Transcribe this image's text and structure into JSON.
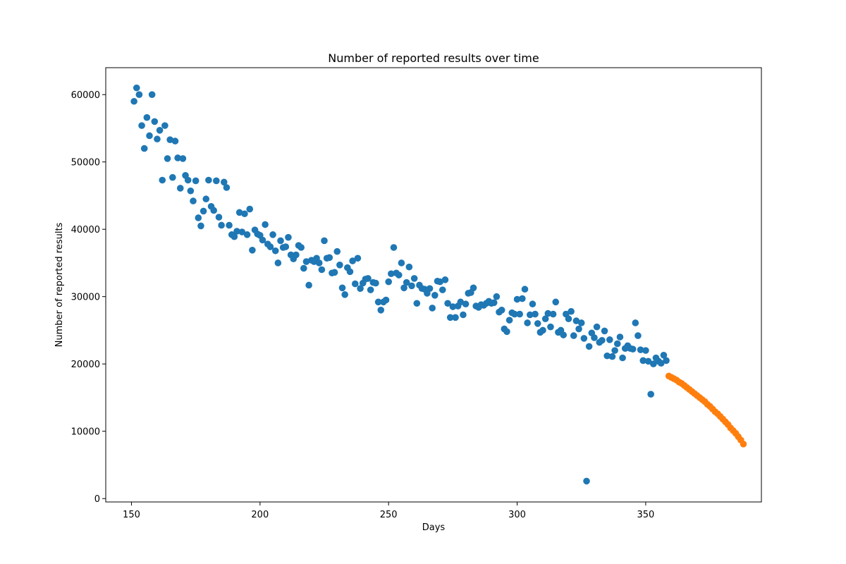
{
  "chart_data": {
    "type": "scatter",
    "title": "Number of reported results over time",
    "xlabel": "Days",
    "ylabel": "Number of reported results",
    "xlim": [
      140,
      395
    ],
    "ylim": [
      -500,
      64000
    ],
    "x_ticks": [
      150,
      200,
      250,
      300,
      350
    ],
    "y_ticks": [
      0,
      10000,
      20000,
      30000,
      40000,
      50000,
      60000
    ],
    "grid": false,
    "series": [
      {
        "color": "#1f77b4",
        "points": [
          [
            151,
            59000
          ],
          [
            152,
            61000
          ],
          [
            153,
            60000
          ],
          [
            154,
            55400
          ],
          [
            155,
            52000
          ],
          [
            156,
            56600
          ],
          [
            157,
            53900
          ],
          [
            158,
            60000
          ],
          [
            159,
            56000
          ],
          [
            160,
            53400
          ],
          [
            161,
            54700
          ],
          [
            162,
            47300
          ],
          [
            163,
            55400
          ],
          [
            164,
            50500
          ],
          [
            165,
            53300
          ],
          [
            166,
            47700
          ],
          [
            167,
            53100
          ],
          [
            168,
            50600
          ],
          [
            169,
            46100
          ],
          [
            170,
            50500
          ],
          [
            171,
            48000
          ],
          [
            172,
            47300
          ],
          [
            173,
            45700
          ],
          [
            174,
            44200
          ],
          [
            175,
            47200
          ],
          [
            176,
            41700
          ],
          [
            177,
            40500
          ],
          [
            178,
            42700
          ],
          [
            179,
            44500
          ],
          [
            180,
            47300
          ],
          [
            181,
            43400
          ],
          [
            182,
            42800
          ],
          [
            183,
            47200
          ],
          [
            184,
            41800
          ],
          [
            185,
            40600
          ],
          [
            186,
            47000
          ],
          [
            187,
            46200
          ],
          [
            188,
            40600
          ],
          [
            189,
            39200
          ],
          [
            190,
            38900
          ],
          [
            191,
            39700
          ],
          [
            192,
            42500
          ],
          [
            193,
            39600
          ],
          [
            194,
            42300
          ],
          [
            195,
            39200
          ],
          [
            196,
            43000
          ],
          [
            197,
            36900
          ],
          [
            198,
            39900
          ],
          [
            199,
            39300
          ],
          [
            200,
            39100
          ],
          [
            201,
            38400
          ],
          [
            202,
            40700
          ],
          [
            203,
            37800
          ],
          [
            204,
            37400
          ],
          [
            205,
            39200
          ],
          [
            206,
            36800
          ],
          [
            207,
            35000
          ],
          [
            208,
            38300
          ],
          [
            209,
            37300
          ],
          [
            210,
            37400
          ],
          [
            211,
            38800
          ],
          [
            212,
            36200
          ],
          [
            213,
            35600
          ],
          [
            214,
            36200
          ],
          [
            215,
            37600
          ],
          [
            216,
            37300
          ],
          [
            217,
            34200
          ],
          [
            218,
            35200
          ],
          [
            219,
            31700
          ],
          [
            220,
            35400
          ],
          [
            221,
            35200
          ],
          [
            222,
            35700
          ],
          [
            223,
            35000
          ],
          [
            224,
            34000
          ],
          [
            225,
            38300
          ],
          [
            226,
            35700
          ],
          [
            227,
            35800
          ],
          [
            228,
            33500
          ],
          [
            229,
            33600
          ],
          [
            230,
            36700
          ],
          [
            231,
            34700
          ],
          [
            232,
            31300
          ],
          [
            233,
            30300
          ],
          [
            234,
            34300
          ],
          [
            235,
            33700
          ],
          [
            236,
            35300
          ],
          [
            237,
            31900
          ],
          [
            238,
            35700
          ],
          [
            239,
            31200
          ],
          [
            240,
            32000
          ],
          [
            241,
            32600
          ],
          [
            242,
            32700
          ],
          [
            243,
            31000
          ],
          [
            244,
            32100
          ],
          [
            245,
            32000
          ],
          [
            246,
            29200
          ],
          [
            247,
            28000
          ],
          [
            248,
            29200
          ],
          [
            249,
            29500
          ],
          [
            250,
            32200
          ],
          [
            251,
            33400
          ],
          [
            252,
            37300
          ],
          [
            253,
            33500
          ],
          [
            254,
            33200
          ],
          [
            255,
            35000
          ],
          [
            256,
            31300
          ],
          [
            257,
            32100
          ],
          [
            258,
            34400
          ],
          [
            259,
            31600
          ],
          [
            260,
            32700
          ],
          [
            261,
            29000
          ],
          [
            262,
            31700
          ],
          [
            263,
            31200
          ],
          [
            264,
            31100
          ],
          [
            265,
            30500
          ],
          [
            266,
            31200
          ],
          [
            267,
            28300
          ],
          [
            268,
            30200
          ],
          [
            269,
            32300
          ],
          [
            270,
            32200
          ],
          [
            271,
            31000
          ],
          [
            272,
            32500
          ],
          [
            273,
            29000
          ],
          [
            274,
            26900
          ],
          [
            275,
            28500
          ],
          [
            276,
            26900
          ],
          [
            277,
            28600
          ],
          [
            278,
            29200
          ],
          [
            279,
            27300
          ],
          [
            280,
            28900
          ],
          [
            281,
            30500
          ],
          [
            282,
            30600
          ],
          [
            283,
            31300
          ],
          [
            284,
            28600
          ],
          [
            285,
            28400
          ],
          [
            286,
            28800
          ],
          [
            287,
            28700
          ],
          [
            288,
            29000
          ],
          [
            289,
            29300
          ],
          [
            290,
            29000
          ],
          [
            291,
            29100
          ],
          [
            292,
            30000
          ],
          [
            293,
            27700
          ],
          [
            294,
            28000
          ],
          [
            295,
            25200
          ],
          [
            296,
            24800
          ],
          [
            297,
            26500
          ],
          [
            298,
            27600
          ],
          [
            299,
            27400
          ],
          [
            300,
            29600
          ],
          [
            301,
            27400
          ],
          [
            302,
            29700
          ],
          [
            303,
            31100
          ],
          [
            304,
            26100
          ],
          [
            305,
            27300
          ],
          [
            306,
            28900
          ],
          [
            307,
            27400
          ],
          [
            308,
            26000
          ],
          [
            309,
            24700
          ],
          [
            310,
            25000
          ],
          [
            311,
            26700
          ],
          [
            312,
            27500
          ],
          [
            313,
            25500
          ],
          [
            314,
            27400
          ],
          [
            315,
            29200
          ],
          [
            316,
            24700
          ],
          [
            317,
            25000
          ],
          [
            318,
            24300
          ],
          [
            319,
            27400
          ],
          [
            320,
            26700
          ],
          [
            321,
            27800
          ],
          [
            322,
            24200
          ],
          [
            323,
            26400
          ],
          [
            324,
            25200
          ],
          [
            325,
            26100
          ],
          [
            326,
            23800
          ],
          [
            327,
            2600
          ],
          [
            328,
            22600
          ],
          [
            329,
            24600
          ],
          [
            330,
            23900
          ],
          [
            331,
            25500
          ],
          [
            332,
            23200
          ],
          [
            333,
            23500
          ],
          [
            334,
            24900
          ],
          [
            335,
            21200
          ],
          [
            336,
            23600
          ],
          [
            337,
            21100
          ],
          [
            338,
            22000
          ],
          [
            339,
            23000
          ],
          [
            340,
            24000
          ],
          [
            341,
            20900
          ],
          [
            342,
            22300
          ],
          [
            343,
            22700
          ],
          [
            344,
            22300
          ],
          [
            345,
            22200
          ],
          [
            346,
            26100
          ],
          [
            347,
            24200
          ],
          [
            348,
            22100
          ],
          [
            349,
            20500
          ],
          [
            350,
            22000
          ],
          [
            351,
            20400
          ],
          [
            352,
            15500
          ],
          [
            353,
            20000
          ],
          [
            354,
            20900
          ],
          [
            355,
            20400
          ],
          [
            356,
            20100
          ],
          [
            357,
            21300
          ],
          [
            358,
            20500
          ]
        ]
      },
      {
        "color": "#ff7f0e",
        "points": [
          [
            359,
            18200
          ],
          [
            360,
            18000
          ],
          [
            361,
            17800
          ],
          [
            362,
            17600
          ],
          [
            363,
            17300
          ],
          [
            364,
            17100
          ],
          [
            365,
            16800
          ],
          [
            366,
            16500
          ],
          [
            367,
            16200
          ],
          [
            368,
            15900
          ],
          [
            369,
            15600
          ],
          [
            370,
            15300
          ],
          [
            371,
            15000
          ],
          [
            372,
            14700
          ],
          [
            373,
            14400
          ],
          [
            374,
            14000
          ],
          [
            375,
            13700
          ],
          [
            376,
            13300
          ],
          [
            377,
            12900
          ],
          [
            378,
            12600
          ],
          [
            379,
            12200
          ],
          [
            380,
            11800
          ],
          [
            381,
            11400
          ],
          [
            382,
            11000
          ],
          [
            383,
            10500
          ],
          [
            384,
            10100
          ],
          [
            385,
            9700
          ],
          [
            386,
            9200
          ],
          [
            387,
            8700
          ],
          [
            388,
            8100
          ]
        ]
      }
    ]
  }
}
